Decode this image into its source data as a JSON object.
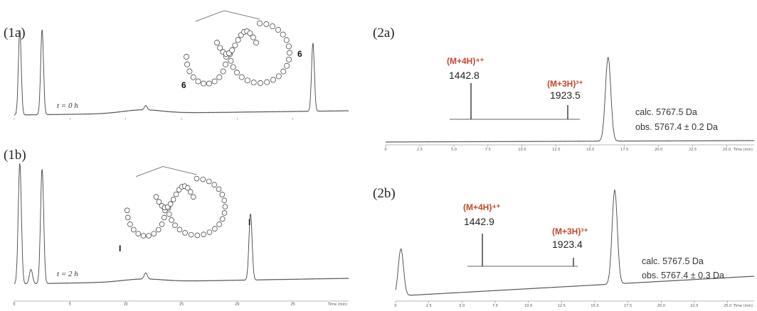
{
  "panels": {
    "p1a": {
      "label": "(1a)",
      "time_label": "t = 0 h",
      "peak_label_left": "6",
      "peak_label_right": "6"
    },
    "p1b": {
      "label": "(1b)",
      "time_label": "t = 2 h",
      "peak_label_left": "I",
      "peak_label_right": "I"
    },
    "p2a": {
      "label": "(2a)",
      "ion1_name": "(M+4H)⁴⁺",
      "ion1_value": "1442.8",
      "ion2_name": "(M+3H)³⁺",
      "ion2_value": "1923.5",
      "calc": "calc. 5767.5  Da",
      "obs": "obs. 5767.4 ± 0.2 Da"
    },
    "p2b": {
      "label": "(2b)",
      "ion1_name": "(M+4H)⁴⁺",
      "ion1_value": "1442.9",
      "ion2_name": "(M+3H)³⁺",
      "ion2_value": "1923.4",
      "calc": "calc. 5767.5  Da",
      "obs": "obs. 5767.4 ± 0.3 Da"
    }
  },
  "colors": {
    "trace": "#444444",
    "ion_label": "#c8462a"
  },
  "chart_data": [
    {
      "id": "p1a",
      "type": "line",
      "xlabel": "Time (min)",
      "xlim": [
        0,
        30
      ],
      "xticks": [
        "0",
        "5",
        "10",
        "15",
        "20",
        "25"
      ],
      "peaks": [
        {
          "x": 0.5,
          "h": 1.0
        },
        {
          "x": 2.5,
          "h": 1.0
        },
        {
          "x": 11.8,
          "h": 0.05
        },
        {
          "x": 26.8,
          "h": 0.8
        }
      ]
    },
    {
      "id": "p1b",
      "type": "line",
      "xlabel": "Time (min)",
      "xlim": [
        0,
        30
      ],
      "xticks": [
        "0",
        "5",
        "10",
        "15",
        "20",
        "25"
      ],
      "peaks": [
        {
          "x": 0.5,
          "h": 1.0
        },
        {
          "x": 1.5,
          "h": 0.12
        },
        {
          "x": 2.5,
          "h": 0.95
        },
        {
          "x": 11.8,
          "h": 0.05
        },
        {
          "x": 21.2,
          "h": 0.55
        }
      ]
    },
    {
      "id": "p2a",
      "type": "line",
      "xlabel": "Time (min)",
      "xlim": [
        0,
        27
      ],
      "xticks": [
        "0",
        "2.5",
        "5.0",
        "7.5",
        "10.0",
        "12.5",
        "15.0",
        "17.5",
        "20.0",
        "22.5",
        "25.0"
      ],
      "peaks": [
        {
          "x": 16.3,
          "h": 1.0
        }
      ],
      "ms_peaks": [
        {
          "mz": 1442.8,
          "label": "(M+4H)⁴⁺"
        },
        {
          "mz": 1923.5,
          "label": "(M+3H)³⁺"
        }
      ]
    },
    {
      "id": "p2b",
      "type": "line",
      "xlabel": "Time (min)",
      "xlim": [
        0,
        27
      ],
      "xticks": [
        "0",
        "2.5",
        "5.0",
        "7.5",
        "10.0",
        "12.5",
        "15.0",
        "17.5",
        "20.0",
        "22.5",
        "25.0"
      ],
      "peaks": [
        {
          "x": 0.4,
          "h": 0.5
        },
        {
          "x": 16.5,
          "h": 1.0
        }
      ],
      "ms_peaks": [
        {
          "mz": 1442.9,
          "label": "(M+4H)⁴⁺"
        },
        {
          "mz": 1923.4,
          "label": "(M+3H)³⁺"
        }
      ]
    }
  ]
}
